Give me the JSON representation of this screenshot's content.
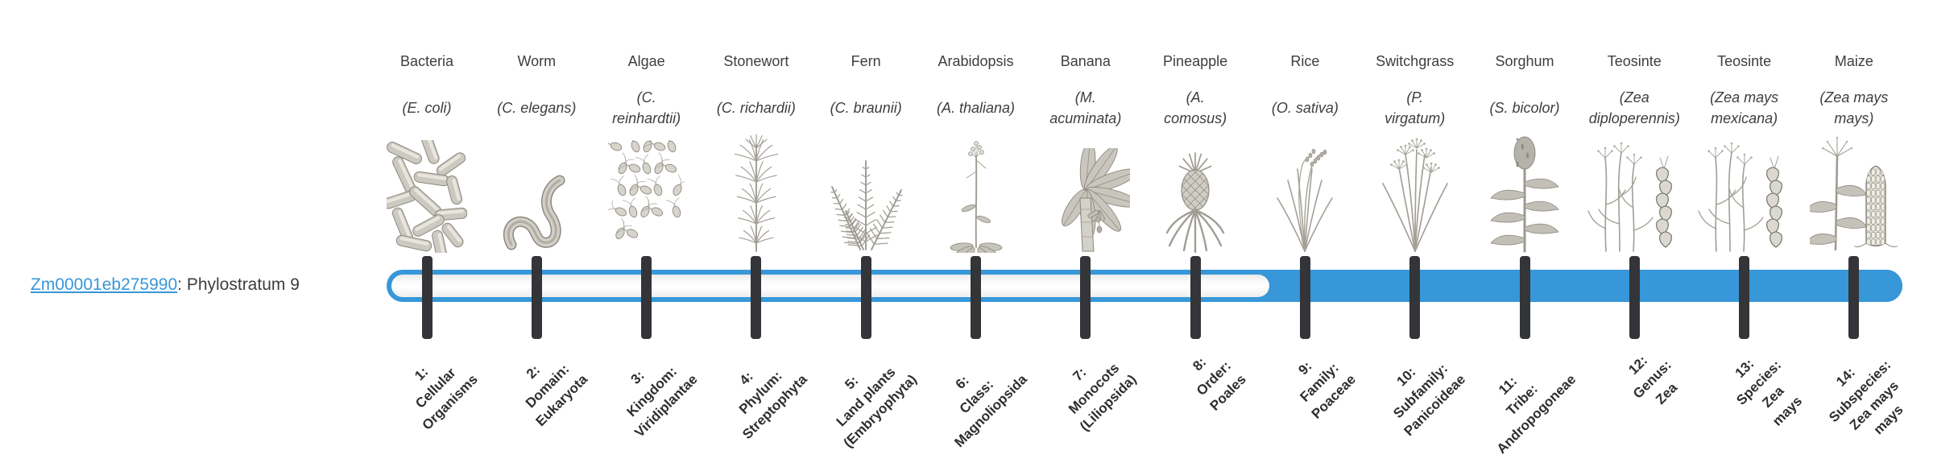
{
  "gene": {
    "id": "Zm00001eb275990",
    "suffix": ": Phylostratum 9",
    "phylostratum": 9
  },
  "timeline": {
    "strata_total": 14,
    "filled_from_stratum": 9,
    "bar_color": "#3797d8",
    "tick_color": "#333538",
    "link_color": "#3797d8"
  },
  "taxa": [
    {
      "name": "Bacteria",
      "species": "(E. coli)",
      "icon": "bacteria"
    },
    {
      "name": "Worm",
      "species": "(C. elegans)",
      "icon": "worm"
    },
    {
      "name": "Algae",
      "species": "(C.\nreinhardtii)",
      "icon": "algae"
    },
    {
      "name": "Stonewort",
      "species": "(C. richardii)",
      "icon": "stonewort"
    },
    {
      "name": "Fern",
      "species": "(C. braunii)",
      "icon": "fern"
    },
    {
      "name": "Arabidopsis",
      "species": "(A. thaliana)",
      "icon": "arabidopsis"
    },
    {
      "name": "Banana",
      "species": "(M.\nacuminata)",
      "icon": "banana"
    },
    {
      "name": "Pineapple",
      "species": "(A.\ncomosus)",
      "icon": "pineapple"
    },
    {
      "name": "Rice",
      "species": "(O. sativa)",
      "icon": "rice"
    },
    {
      "name": "Switchgrass",
      "species": "(P.\nvirgatum)",
      "icon": "switchgrass"
    },
    {
      "name": "Sorghum",
      "species": "(S. bicolor)",
      "icon": "sorghum"
    },
    {
      "name": "Teosinte",
      "species": "(Zea\ndiploperennis)",
      "icon": "teosinte"
    },
    {
      "name": "Teosinte",
      "species": "(Zea mays\nmexicana)",
      "icon": "teosinte"
    },
    {
      "name": "Maize",
      "species": "(Zea mays\nmays)",
      "icon": "maize"
    }
  ],
  "strata": [
    {
      "num": 1,
      "label": "1:\nCellular\nOrganisms"
    },
    {
      "num": 2,
      "label": "2:\nDomain:\nEukaryota"
    },
    {
      "num": 3,
      "label": "3:\nKingdom:\nViridiplantae"
    },
    {
      "num": 4,
      "label": "4:\nPhylum:\nStreptophyta"
    },
    {
      "num": 5,
      "label": "5:\nLand plants\n(Embryophyta)"
    },
    {
      "num": 6,
      "label": "6:\nClass:\nMagnoliopsida"
    },
    {
      "num": 7,
      "label": "7:\nMonocots\n(Liliopsida)"
    },
    {
      "num": 8,
      "label": "8:\nOrder:\nPoales"
    },
    {
      "num": 9,
      "label": "9:\nFamily:\nPoaceae"
    },
    {
      "num": 10,
      "label": "10:\nSubfamily:\nPanicoideae"
    },
    {
      "num": 11,
      "label": "11:\nTribe:\nAndropogoneae"
    },
    {
      "num": 12,
      "label": "12:\nGenus:\nZea"
    },
    {
      "num": 13,
      "label": "13:\nSpecies:\nZea\nmays"
    },
    {
      "num": 14,
      "label": "14:\nSubspecies:\nZea mays\nmays"
    }
  ]
}
